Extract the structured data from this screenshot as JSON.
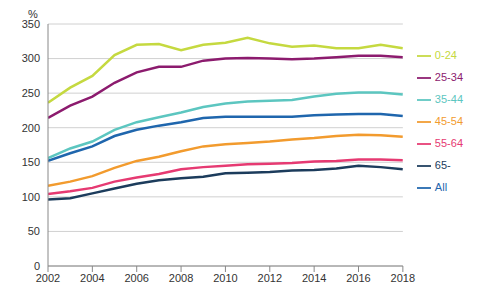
{
  "chart_data": {
    "type": "line",
    "y_label": "%",
    "x": [
      2002,
      2003,
      2004,
      2005,
      2006,
      2007,
      2008,
      2009,
      2010,
      2011,
      2012,
      2013,
      2014,
      2015,
      2016,
      2017,
      2018
    ],
    "xlim": [
      2002,
      2018
    ],
    "xticks": [
      2002,
      2004,
      2006,
      2008,
      2010,
      2012,
      2014,
      2016,
      2018
    ],
    "ylim": [
      0,
      350
    ],
    "yticks": [
      0,
      50,
      100,
      150,
      200,
      250,
      300,
      350
    ],
    "grid": true,
    "legend": "right",
    "series": [
      {
        "name": "All",
        "color": "#1f66ad",
        "values": [
          152,
          163,
          173,
          188,
          197,
          203,
          208,
          214,
          216,
          216,
          216,
          216,
          218,
          219,
          220,
          220,
          217
        ]
      },
      {
        "name": "0-24",
        "color": "#c5d940",
        "values": [
          236,
          258,
          275,
          305,
          320,
          321,
          312,
          320,
          323,
          330,
          322,
          317,
          319,
          315,
          315,
          320,
          315
        ]
      },
      {
        "name": "25-34",
        "color": "#8c1b6e",
        "values": [
          214,
          232,
          245,
          265,
          280,
          288,
          288,
          297,
          300,
          301,
          300,
          299,
          300,
          302,
          304,
          304,
          302
        ]
      },
      {
        "name": "35-44",
        "color": "#5cc6c0",
        "values": [
          156,
          170,
          180,
          197,
          208,
          215,
          222,
          230,
          235,
          238,
          239,
          240,
          245,
          249,
          251,
          251,
          248
        ]
      },
      {
        "name": "45-54",
        "color": "#f29b2e",
        "values": [
          116,
          122,
          130,
          142,
          152,
          158,
          166,
          173,
          176,
          178,
          180,
          183,
          185,
          188,
          190,
          189,
          187
        ]
      },
      {
        "name": "55-64",
        "color": "#e63a72",
        "values": [
          104,
          108,
          113,
          122,
          128,
          133,
          140,
          143,
          145,
          147,
          148,
          149,
          151,
          152,
          154,
          154,
          153
        ]
      },
      {
        "name": "65-",
        "color": "#1c3c5c",
        "values": [
          96,
          98,
          105,
          112,
          119,
          124,
          127,
          129,
          134,
          135,
          136,
          138,
          139,
          141,
          145,
          143,
          140
        ]
      }
    ]
  }
}
